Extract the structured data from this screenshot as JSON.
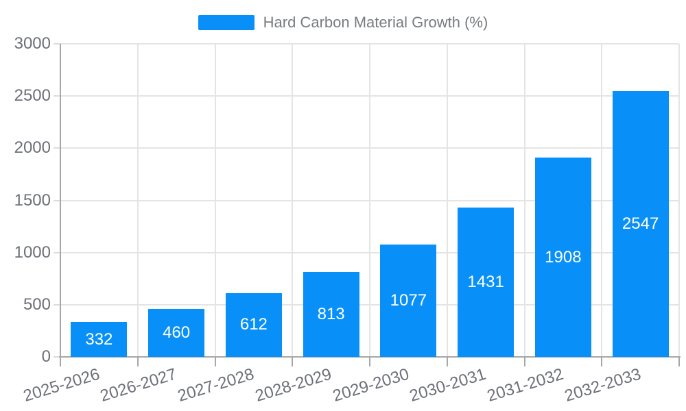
{
  "legend": {
    "label": "Hard Carbon Material Growth (%)"
  },
  "chart_data": {
    "type": "bar",
    "title": "Hard Carbon Material Growth (%)",
    "categories": [
      "2025-2026",
      "2026-2027",
      "2027-2028",
      "2028-2029",
      "2029-2030",
      "2030-2031",
      "2031-2032",
      "2032-2033"
    ],
    "series": [
      {
        "name": "Hard Carbon Material Growth (%)",
        "values": [
          332,
          460,
          612,
          813,
          1077,
          1431,
          1908,
          2547
        ]
      }
    ],
    "xlabel": "",
    "ylabel": "",
    "ylim": [
      0,
      3000
    ],
    "yticks": [
      0,
      500,
      1000,
      1500,
      2000,
      2500,
      3000
    ],
    "grid": true,
    "legend_position": "top-center",
    "value_labels": "inside-center",
    "x_label_rotation_deg": -17,
    "colors": {
      "bar": "#0890f8",
      "value_label": "#ffffff",
      "axis_label": "#6e7079",
      "legend_text": "#787c80",
      "axis_line": "#a7a7a7",
      "gridline": "#e4e4e4",
      "y_tick": "#dcdcdc",
      "background": "#ffffff"
    }
  }
}
